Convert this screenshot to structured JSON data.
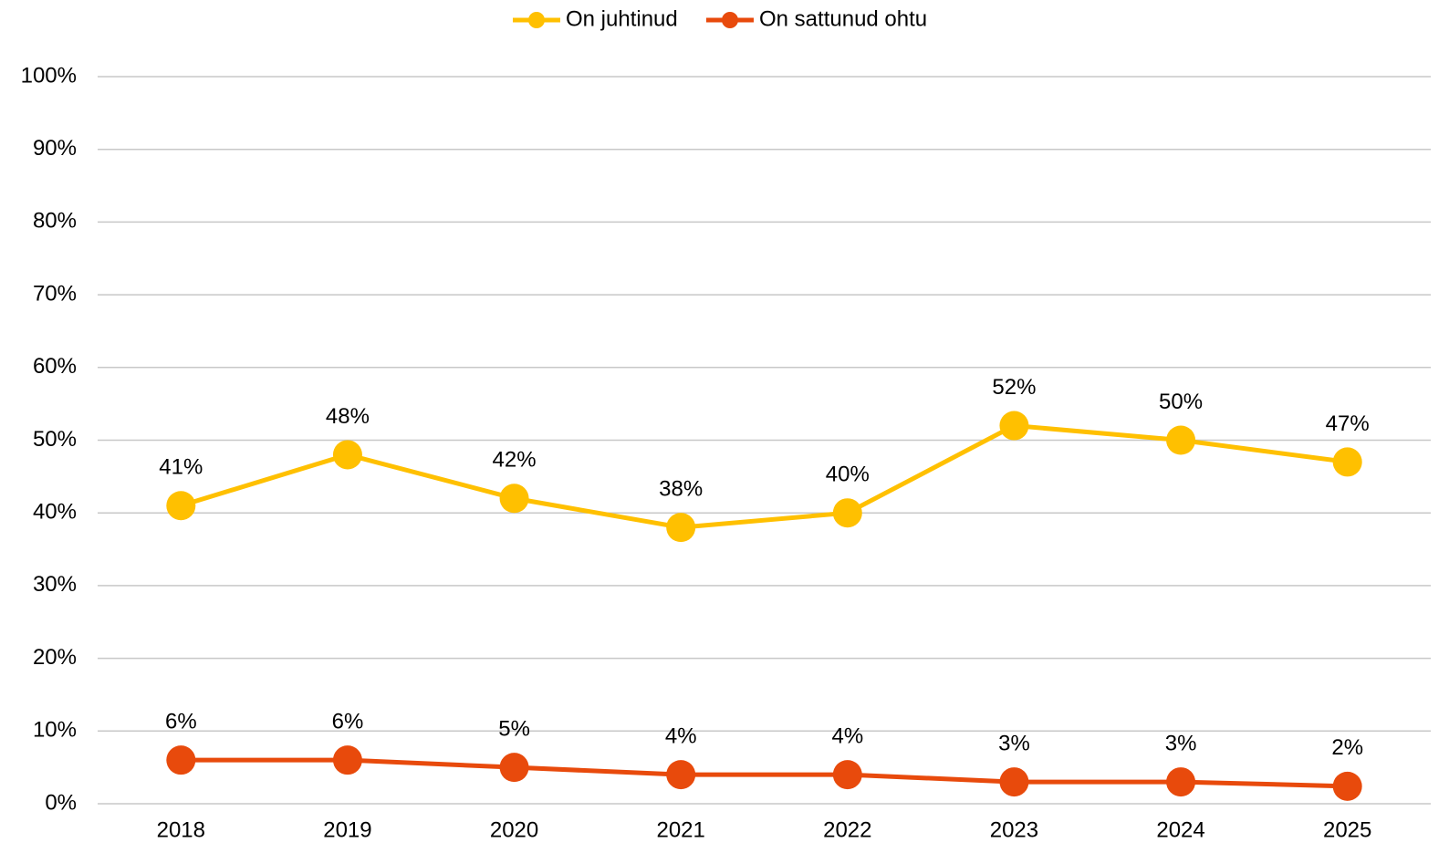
{
  "chart_data": {
    "type": "line",
    "categories": [
      "2018",
      "2019",
      "2020",
      "2021",
      "2022",
      "2023",
      "2024",
      "2025"
    ],
    "series": [
      {
        "name": "On juhtinud",
        "color": "#FFC000",
        "values": [
          41,
          48,
          42,
          38,
          40,
          52,
          50,
          47
        ],
        "value_labels": [
          "41%",
          "48%",
          "42%",
          "38%",
          "40%",
          "52%",
          "50%",
          "47%"
        ]
      },
      {
        "name": "On sattunud ohtu",
        "color": "#E84A0C",
        "values": [
          6,
          6,
          5,
          4,
          4,
          3,
          3,
          2.4
        ],
        "value_labels": [
          "6%",
          "6%",
          "5%",
          "4%",
          "4%",
          "3%",
          "3%",
          "2%"
        ]
      }
    ],
    "ylim": [
      0,
      100
    ],
    "yticks": [
      {
        "value": 0,
        "label": "0%"
      },
      {
        "value": 10,
        "label": "10%"
      },
      {
        "value": 20,
        "label": "20%"
      },
      {
        "value": 30,
        "label": "30%"
      },
      {
        "value": 40,
        "label": "40%"
      },
      {
        "value": 50,
        "label": "50%"
      },
      {
        "value": 60,
        "label": "60%"
      },
      {
        "value": 70,
        "label": "70%"
      },
      {
        "value": 80,
        "label": "80%"
      },
      {
        "value": 90,
        "label": "90%"
      },
      {
        "value": 100,
        "label": "100%"
      }
    ],
    "grid": true,
    "legend": "top"
  }
}
